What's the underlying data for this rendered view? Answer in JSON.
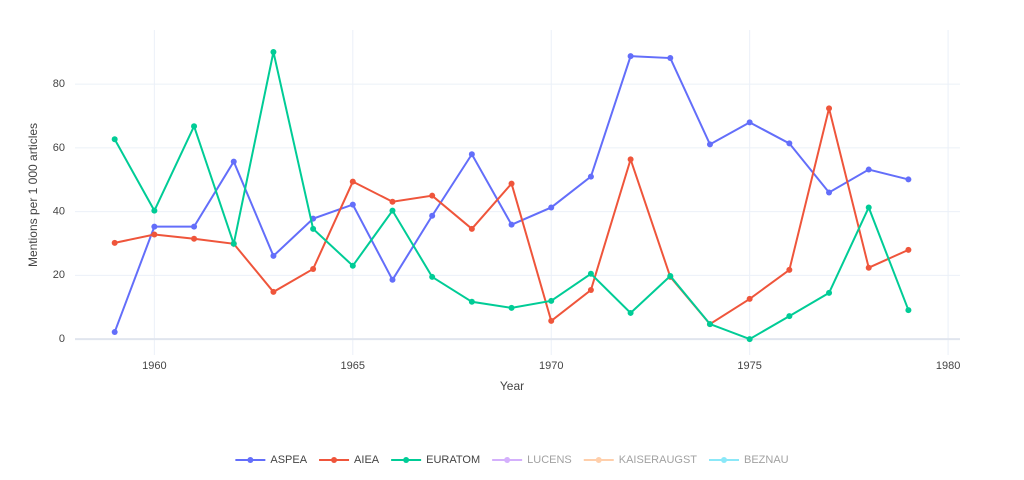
{
  "chart_data": {
    "type": "line",
    "xlabel": "Year",
    "ylabel": "Mentions per 1 000 articles",
    "x": [
      1959,
      1960,
      1961,
      1962,
      1963,
      1964,
      1965,
      1966,
      1967,
      1968,
      1969,
      1970,
      1971,
      1972,
      1973,
      1974,
      1975,
      1976,
      1977,
      1978,
      1979
    ],
    "series": [
      {
        "name": "ASPEA",
        "color": "#636efa",
        "values": [
          2.2,
          35.3,
          35.3,
          55.7,
          26.1,
          37.8,
          42.2,
          18.6,
          38.7,
          58,
          35.9,
          41.3,
          51,
          88.8,
          88.2,
          61.1,
          68,
          61.4,
          46,
          53.2,
          50.1
        ]
      },
      {
        "name": "AIEA",
        "color": "#ef553b",
        "values": [
          30.2,
          32.8,
          31.5,
          29.9,
          14.8,
          22,
          49.4,
          43.1,
          45,
          34.6,
          48.8,
          5.7,
          15.4,
          56.4,
          19.5,
          4.7,
          12.6,
          21.7,
          72.4,
          22.4,
          28
        ]
      },
      {
        "name": "EURATOM",
        "color": "#00cc96",
        "values": [
          62.7,
          40.3,
          66.8,
          29.9,
          90.1,
          34.6,
          23,
          40.3,
          19.5,
          11.7,
          9.8,
          12,
          20.5,
          8.2,
          19.8,
          4.7,
          0,
          7.2,
          14.5,
          41.3,
          9.1
        ]
      },
      {
        "name": "LUCENS",
        "color": "#ab63fa",
        "visible": false
      },
      {
        "name": "KAISERAUGST",
        "color": "#ffa15a",
        "visible": false
      },
      {
        "name": "BEZNAU",
        "color": "#19d3f3",
        "visible": false
      }
    ],
    "xlim": [
      1958,
      1980.3
    ],
    "xticks": [
      1960,
      1965,
      1970,
      1975,
      1980
    ],
    "ylim": [
      -5,
      97
    ],
    "yticks": [
      0,
      20,
      40,
      60,
      80
    ],
    "grid": true,
    "legend": "bottom"
  }
}
